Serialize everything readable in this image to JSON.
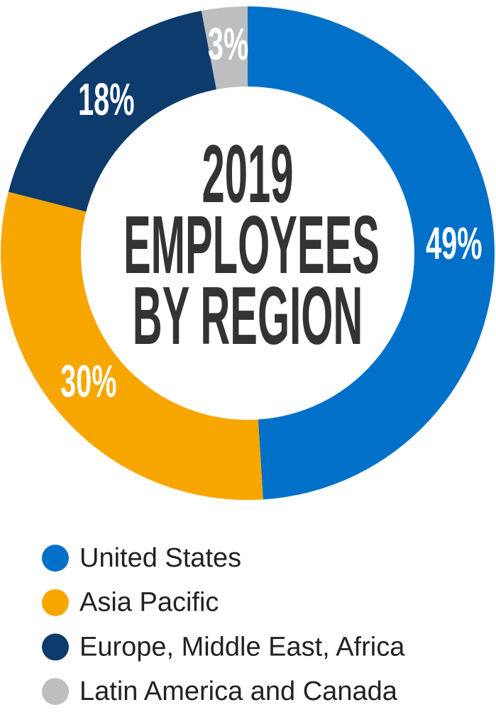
{
  "chart_data": {
    "type": "donut",
    "title": "2019 EMPLOYEES BY REGION",
    "categories": [
      "United States",
      "Asia Pacific",
      "Europe, Middle East, Africa",
      "Latin America and Canada"
    ],
    "values": [
      49,
      30,
      18,
      3
    ],
    "value_labels": [
      "49%",
      "30%",
      "18%",
      "3%"
    ],
    "colors": [
      "#0070c8",
      "#f7a600",
      "#0c3b6c",
      "#bdbec0"
    ]
  }
}
